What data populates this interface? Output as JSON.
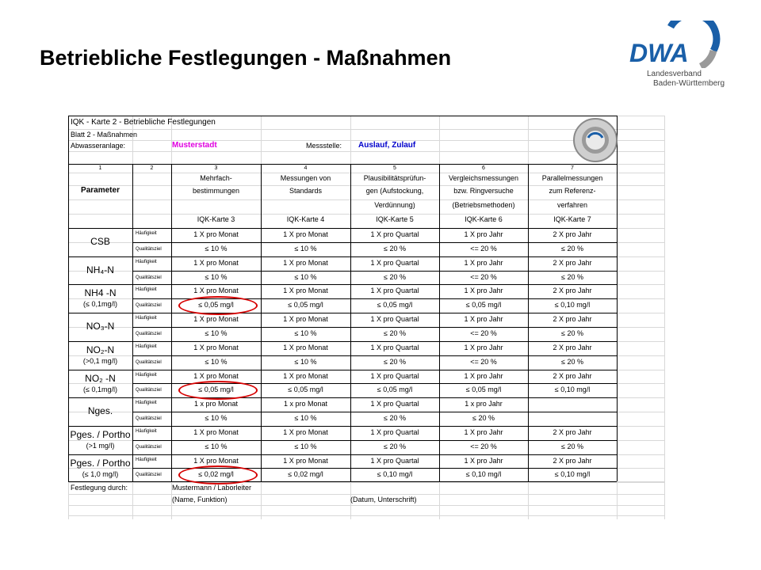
{
  "slide": {
    "title": "Betriebliche Festlegungen - Maßnahmen"
  },
  "logo": {
    "brand": "DWA",
    "line1": "Landesverband",
    "line2": "Baden-Württemberg"
  },
  "sheet": {
    "title": "IQK - Karte 2 - Betriebliche Festlegungen",
    "subtitle": "Blatt 2 - Maßnahmen",
    "plant_label": "Abwasseranlage:",
    "plant_value": "Musterstadt",
    "station_label": "Messstelle:",
    "station_value": "Auslauf, Zulauf",
    "col_numbers": [
      "1",
      "2",
      "3",
      "4",
      "5",
      "6",
      "7"
    ],
    "parameter_header": "Parameter",
    "headers": [
      [
        "Mehrfach-",
        "bestimmungen",
        "",
        "IQK-Karte 3"
      ],
      [
        "Messungen von",
        "Standards",
        "",
        "IQK-Karte 4"
      ],
      [
        "Plausibilitätsprüfun-",
        "gen (Aufstockung,",
        "Verdünnung)",
        "IQK-Karte 5"
      ],
      [
        "Vergleichsmessungen",
        "bzw. Ringversuche",
        "(Betriebsmethoden)",
        "IQK-Karte 6"
      ],
      [
        "Parallelmessungen",
        "zum Referenz-",
        "verfahren",
        "IQK-Karte 7"
      ]
    ],
    "row_kinds": [
      "Häufigkeit",
      "Qualitätsziel"
    ],
    "params": [
      {
        "main": "CSB",
        "sub": "",
        "freq": [
          "1 X pro Monat",
          "1 X pro Monat",
          "1 X pro Quartal",
          "1 X pro Jahr",
          "2 X pro Jahr"
        ],
        "qual": [
          "≤ 10 %",
          "≤ 10 %",
          "≤ 20 %",
          "<= 20 %",
          "≤ 20 %"
        ]
      },
      {
        "main": "NH₄-N",
        "sub": "",
        "freq": [
          "1 X pro Monat",
          "1 X pro Monat",
          "1 X pro Quartal",
          "1 X pro Jahr",
          "2 X pro Jahr"
        ],
        "qual": [
          "≤ 10 %",
          "≤ 10 %",
          "≤ 20 %",
          "<= 20 %",
          "≤ 20 %"
        ]
      },
      {
        "main": "NH4 -N",
        "sub": "(≤ 0,1mg/l)",
        "freq": [
          "1 X pro Monat",
          "1 X pro Monat",
          "1 X pro Quartal",
          "1 X pro Jahr",
          "2 X pro Jahr"
        ],
        "qual": [
          "≤ 0,05 mg/l",
          "≤ 0,05 mg/l",
          "≤ 0,05 mg/l",
          "≤ 0,05 mg/l",
          "≤ 0,10 mg/l"
        ]
      },
      {
        "main": "NO₃-N",
        "sub": "",
        "freq": [
          "1 X pro Monat",
          "1 X pro Monat",
          "1 X pro Quartal",
          "1 X pro Jahr",
          "2 X pro Jahr"
        ],
        "qual": [
          "≤ 10 %",
          "≤ 10 %",
          "≤ 20 %",
          "<= 20 %",
          "≤ 20 %"
        ]
      },
      {
        "main": "NO₂-N",
        "sub": "(>0,1 mg/l)",
        "freq": [
          "1 X pro Monat",
          "1 X pro Monat",
          "1 X pro Quartal",
          "1 X pro Jahr",
          "2 X pro Jahr"
        ],
        "qual": [
          "≤ 10 %",
          "≤ 10 %",
          "≤ 20 %",
          "<= 20 %",
          "≤ 20 %"
        ]
      },
      {
        "main": "NO₂ -N",
        "sub": "(≤ 0,1mg/l)",
        "freq": [
          "1 X pro Monat",
          "1 X pro Monat",
          "1 X pro Quartal",
          "1 X pro Jahr",
          "2 X pro Jahr"
        ],
        "qual": [
          "≤ 0,05 mg/l",
          "≤ 0,05 mg/l",
          "≤ 0,05 mg/l",
          "≤ 0,05 mg/l",
          "≤ 0,10 mg/l"
        ]
      },
      {
        "main": "Nges.",
        "sub": "",
        "freq": [
          "1 x pro Monat",
          "1 x pro Monat",
          "1 X pro Quartal",
          "1 x pro Jahr",
          ""
        ],
        "qual": [
          "≤ 10 %",
          "≤ 10 %",
          "≤ 20 %",
          "≤ 20 %",
          ""
        ]
      },
      {
        "main": "Pges. / Portho",
        "sub": "(>1 mg/l)",
        "freq": [
          "1 X pro Monat",
          "1 X pro Monat",
          "1 X pro Quartal",
          "1 X pro Jahr",
          "2 X pro Jahr"
        ],
        "qual": [
          "≤ 10 %",
          "≤ 10 %",
          "≤ 20 %",
          "<= 20 %",
          "≤ 20 %"
        ]
      },
      {
        "main": "Pges. / Portho",
        "sub": "(≤ 1,0 mg/l)",
        "freq": [
          "1 X pro Monat",
          "1 X pro Monat",
          "1 X pro Quartal",
          "1 X pro Jahr",
          "2 X pro Jahr"
        ],
        "qual": [
          "≤ 0,02 mg/l",
          "≤ 0,02 mg/l",
          "≤ 0,10 mg/l",
          "≤ 0,10 mg/l",
          "≤ 0,10 mg/l"
        ]
      }
    ],
    "footer": {
      "label": "Festlegung durch:",
      "name_value": "Mustermann / Laborleiter",
      "name_hint": "(Name, Funktion)",
      "date_hint": "(Datum, Unterschrift)"
    },
    "highlight_color": "#d60000",
    "plant_color": "#e000e0",
    "station_color": "#0000cc"
  }
}
